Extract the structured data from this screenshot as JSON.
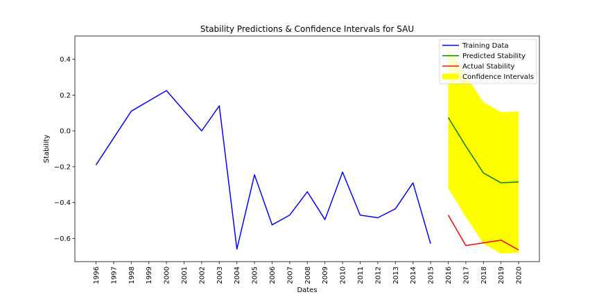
{
  "chart_data": {
    "type": "line",
    "title": "Stability Predictions & Confidence Intervals for SAU",
    "xlabel": "Dates",
    "ylabel": "Stability",
    "categories": [
      "1996",
      "1997",
      "1998",
      "1999",
      "2000",
      "2001",
      "2002",
      "2003",
      "2004",
      "2005",
      "2006",
      "2007",
      "2008",
      "2009",
      "2010",
      "2011",
      "2012",
      "2013",
      "2014",
      "2015",
      "2016",
      "2017",
      "2018",
      "2019",
      "2020"
    ],
    "yticks": [
      "0.4",
      "0.2",
      "0.0",
      "−0.2",
      "−0.4",
      "−0.6"
    ],
    "ylim": [
      -0.73,
      0.53
    ],
    "grid": false,
    "legend_position": "top-right",
    "series": [
      {
        "name": "Training Data",
        "color": "#0000ff",
        "x": [
          "1996",
          "1998",
          "2000",
          "2002",
          "2003",
          "2004",
          "2005",
          "2006",
          "2007",
          "2008",
          "2009",
          "2010",
          "2011",
          "2012",
          "2013",
          "2014",
          "2015"
        ],
        "values": [
          -0.19,
          0.11,
          0.225,
          0.0,
          0.14,
          -0.66,
          -0.245,
          -0.525,
          -0.47,
          -0.34,
          -0.495,
          -0.23,
          -0.47,
          -0.485,
          -0.435,
          -0.29,
          -0.63
        ]
      },
      {
        "name": "Predicted Stability",
        "color": "#008000",
        "x": [
          "2016",
          "2017",
          "2018",
          "2019",
          "2020"
        ],
        "values": [
          0.075,
          -0.085,
          -0.235,
          -0.29,
          -0.285
        ]
      },
      {
        "name": "Actual Stability",
        "color": "#ff0000",
        "x": [
          "2016",
          "2017",
          "2018",
          "2019",
          "2020"
        ],
        "values": [
          -0.47,
          -0.64,
          -0.625,
          -0.61,
          -0.665
        ]
      }
    ],
    "confidence_interval": {
      "name": "Confidence Intervals",
      "color": "#ffff00",
      "x": [
        "2016",
        "2017",
        "2018",
        "2019",
        "2020"
      ],
      "upper": [
        0.47,
        0.31,
        0.16,
        0.105,
        0.108
      ],
      "lower": [
        -0.32,
        -0.48,
        -0.63,
        -0.685,
        -0.68
      ]
    }
  }
}
